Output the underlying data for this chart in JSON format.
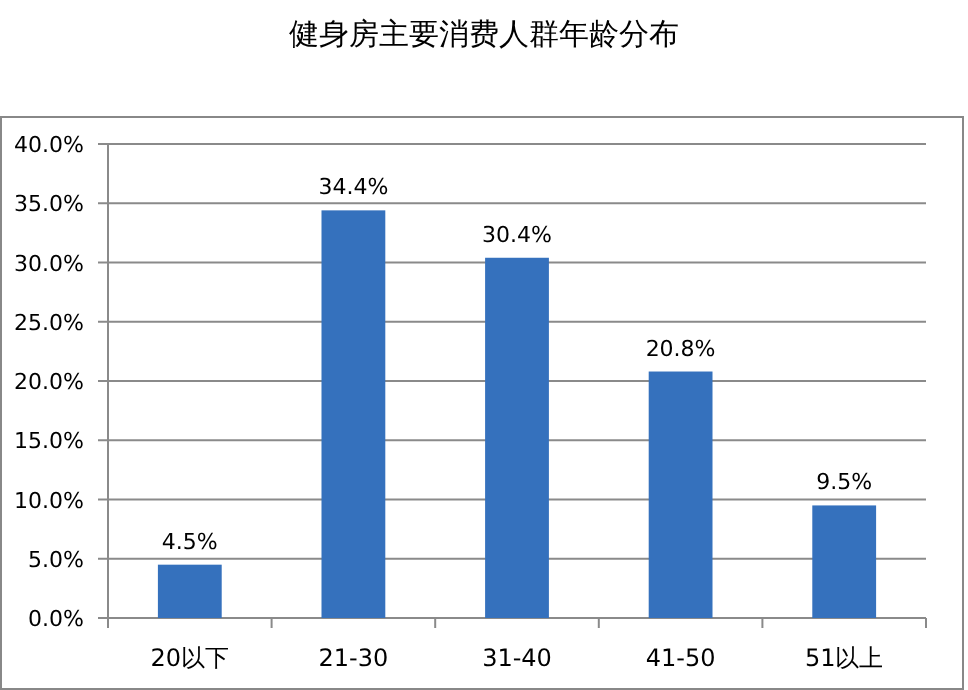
{
  "chart_data": {
    "type": "bar",
    "title": "健身房主要消费人群年龄分布",
    "categories": [
      "20以下",
      "21-30",
      "31-40",
      "41-50",
      "51以上"
    ],
    "values": [
      4.5,
      34.4,
      30.4,
      20.8,
      9.5
    ],
    "value_labels": [
      "4.5%",
      "34.4%",
      "30.4%",
      "20.8%",
      "9.5%"
    ],
    "color": "#3571bd",
    "ylim": [
      0,
      40
    ],
    "yticks": [
      {
        "value": 0,
        "label": "0.0%"
      },
      {
        "value": 5,
        "label": "5.0%"
      },
      {
        "value": 10,
        "label": "10.0%"
      },
      {
        "value": 15,
        "label": "15.0%"
      },
      {
        "value": 20,
        "label": "20.0%"
      },
      {
        "value": 25,
        "label": "25.0%"
      },
      {
        "value": 30,
        "label": "30.0%"
      },
      {
        "value": 35,
        "label": "35.0%"
      },
      {
        "value": 40,
        "label": "40.0%"
      }
    ],
    "grid": "y"
  }
}
